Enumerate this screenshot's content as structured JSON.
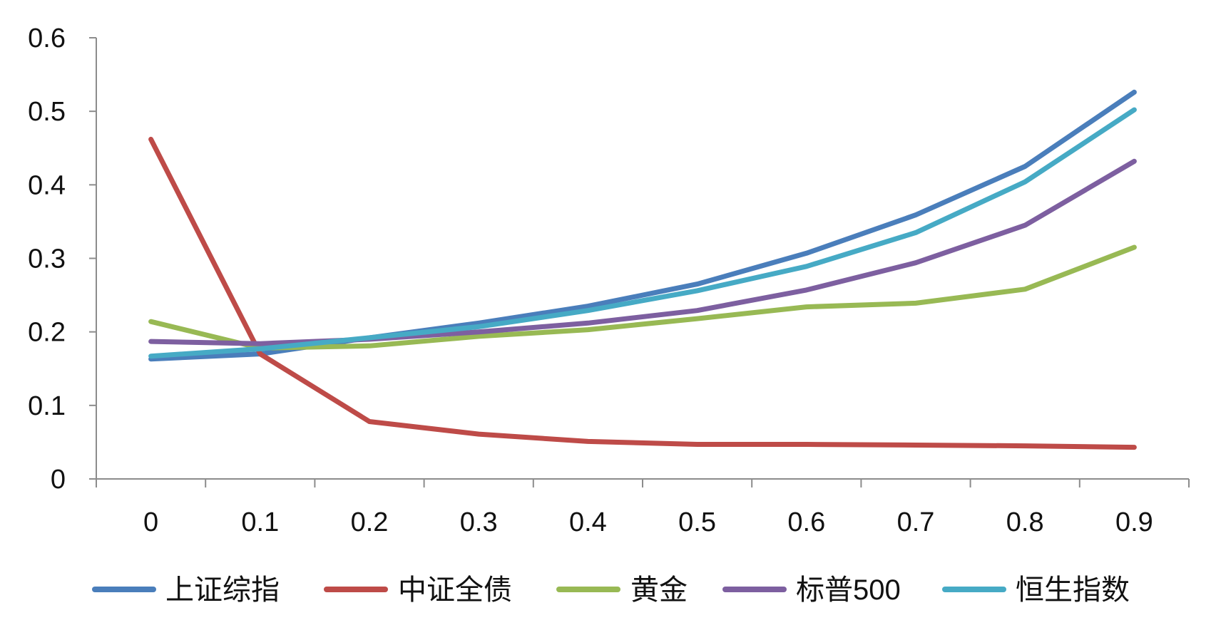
{
  "chart_data": {
    "type": "line",
    "title": "",
    "xlabel": "",
    "ylabel": "",
    "categories": [
      "0",
      "0.1",
      "0.2",
      "0.3",
      "0.4",
      "0.5",
      "0.6",
      "0.7",
      "0.8",
      "0.9"
    ],
    "ylim": [
      0,
      0.6
    ],
    "yticks": [
      "0",
      "0.1",
      "0.2",
      "0.3",
      "0.4",
      "0.5",
      "0.6"
    ],
    "grid": false,
    "legend_position": "bottom",
    "series": [
      {
        "name": "上证综指",
        "color": "#4a7ebb",
        "values": [
          0.163,
          0.17,
          0.192,
          0.212,
          0.235,
          0.265,
          0.307,
          0.359,
          0.425,
          0.526
        ]
      },
      {
        "name": "中证全债",
        "color": "#be4b48",
        "values": [
          0.462,
          0.17,
          0.078,
          0.061,
          0.051,
          0.047,
          0.047,
          0.046,
          0.045,
          0.043
        ]
      },
      {
        "name": "黄金",
        "color": "#98b954",
        "values": [
          0.214,
          0.178,
          0.181,
          0.194,
          0.203,
          0.218,
          0.234,
          0.239,
          0.258,
          0.315
        ]
      },
      {
        "name": "标普500",
        "color": "#7d5fa0",
        "values": [
          0.187,
          0.184,
          0.19,
          0.2,
          0.212,
          0.229,
          0.257,
          0.294,
          0.345,
          0.432
        ]
      },
      {
        "name": "恒生指数",
        "color": "#46aac5",
        "values": [
          0.167,
          0.177,
          0.192,
          0.207,
          0.229,
          0.256,
          0.289,
          0.335,
          0.404,
          0.502
        ]
      }
    ]
  }
}
